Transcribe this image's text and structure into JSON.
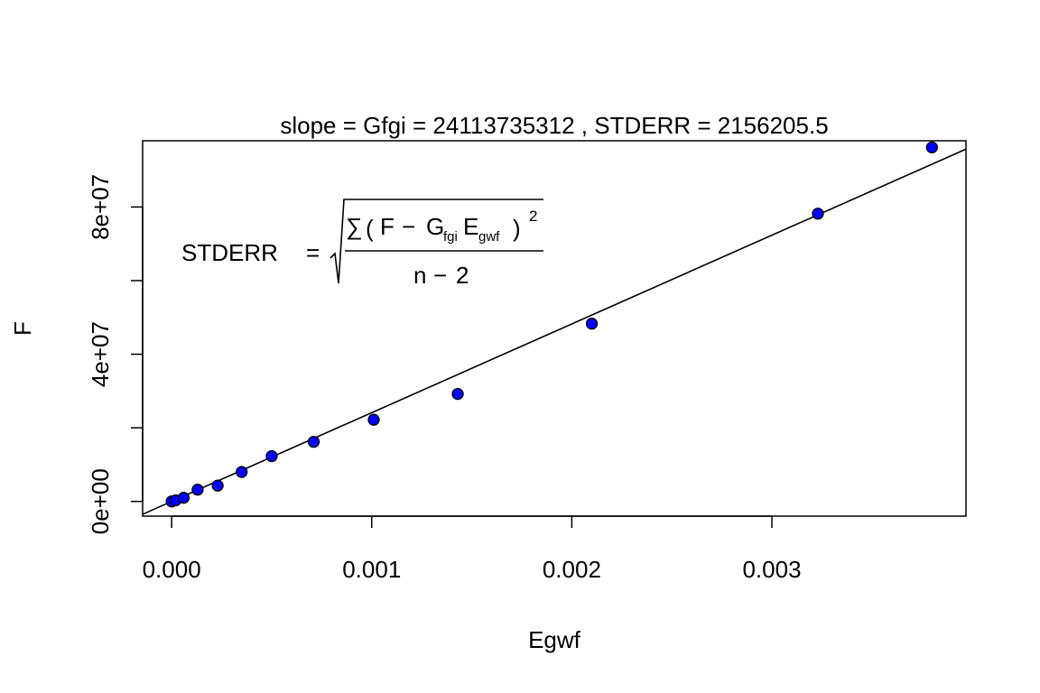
{
  "chart_data": {
    "type": "scatter",
    "title": "slope = Gfgi =  24113735312  , STDERR =  2156205.5",
    "xlabel": "Egwf",
    "ylabel": "F",
    "xlim": [
      -0.000145,
      0.00397
    ],
    "ylim": [
      -4000000,
      98000000
    ],
    "x_ticks": [
      0.0,
      0.001,
      0.002,
      0.003
    ],
    "x_tick_labels": [
      "0.000",
      "0.001",
      "0.002",
      "0.003"
    ],
    "y_ticks": [
      0,
      40000000,
      80000000
    ],
    "y_tick_labels": [
      "0e+00",
      "4e+07",
      "8e+07"
    ],
    "y_minor_ticks": [
      20000000,
      60000000
    ],
    "grid": false,
    "legend": "none",
    "colors": {
      "point_fill": "#0000ff",
      "point_stroke": "#000000",
      "line": "#000000"
    },
    "regression_line": {
      "slope": 24113735312,
      "intercept": 0
    },
    "series": [
      {
        "x": [
          0.0,
          2e-05,
          6e-05,
          0.00013,
          0.00023,
          0.00035,
          0.0005,
          0.00071,
          0.00101,
          0.00143,
          0.0021,
          0.00323,
          0.0038
        ],
        "y": [
          0,
          300000,
          1000000,
          3200000,
          4300000,
          8000000,
          12300000,
          16200000,
          22200000,
          29200000,
          48300000,
          78200000,
          96200000
        ]
      }
    ],
    "annotation": {
      "lhs": "STDERR",
      "eq": "=",
      "sum": "∑",
      "open": "(",
      "F": "F",
      "minus": "−",
      "G": "G",
      "G_sub": "fgi",
      "E": "E",
      "E_sub": "gwf",
      "close": ")",
      "power": "2",
      "n": "n",
      "minus2": "−",
      "two": "2"
    }
  }
}
